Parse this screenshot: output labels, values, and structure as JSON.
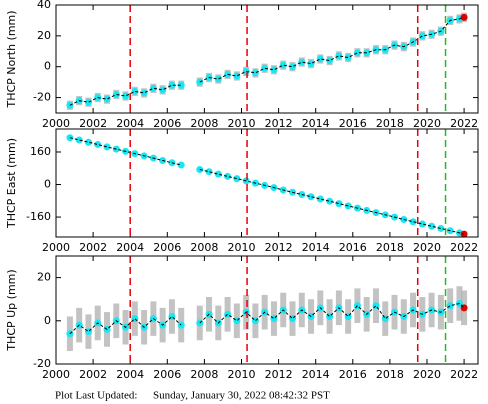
{
  "chart_data": [
    {
      "type": "scatter",
      "ylabel": "THCP North (mm)",
      "color": "#19e6f0",
      "error_color": "#b4b4b4",
      "line_color": "#000000",
      "recent_from": 2021.9,
      "recent_color": "#e00000",
      "x": [
        2000.75,
        2001.25,
        2001.75,
        2002.25,
        2002.75,
        2003.25,
        2003.75,
        2004.25,
        2004.75,
        2005.25,
        2005.75,
        2006.25,
        2006.75,
        2007.25,
        2007.75,
        2008.25,
        2008.75,
        2009.25,
        2009.75,
        2010.25,
        2010.75,
        2011.25,
        2011.75,
        2012.25,
        2012.75,
        2013.25,
        2013.75,
        2014.25,
        2014.75,
        2015.25,
        2015.75,
        2016.25,
        2016.75,
        2017.25,
        2017.75,
        2018.25,
        2018.75,
        2019.25,
        2019.75,
        2020.25,
        2020.75,
        2021.25,
        2021.75,
        2022.0
      ],
      "values": [
        -25,
        -22,
        -23,
        -20,
        -21,
        -18,
        -19,
        -16,
        -17,
        -14,
        -15,
        -12,
        -12,
        null,
        -10,
        -7,
        -8,
        -5,
        -6,
        -3,
        -4,
        -1,
        -2,
        1,
        0,
        3,
        2,
        5,
        4,
        7,
        6,
        9,
        9,
        11,
        11,
        14,
        13,
        16,
        20,
        21,
        23,
        30,
        31,
        32
      ],
      "yerr": 3,
      "xlim": [
        2000,
        2022.75
      ],
      "xticks": [
        2000,
        2002,
        2004,
        2006,
        2008,
        2010,
        2012,
        2014,
        2016,
        2018,
        2020,
        2022
      ],
      "ylim": [
        -30,
        40
      ],
      "yticks": [
        -20,
        0,
        20,
        40
      ],
      "vlines": [
        {
          "x": 2004.0,
          "color": "#e8000b"
        },
        {
          "x": 2010.3,
          "color": "#e8000b"
        },
        {
          "x": 2019.5,
          "color": "#e8000b"
        },
        {
          "x": 2021.0,
          "color": "#22bb22"
        }
      ]
    },
    {
      "type": "scatter",
      "ylabel": "THCP East (mm)",
      "color": "#19e6f0",
      "error_color": "#b4b4b4",
      "line_color": "#000000",
      "recent_from": 2021.9,
      "recent_color": "#e00000",
      "x": [
        2000.75,
        2001.25,
        2001.75,
        2002.25,
        2002.75,
        2003.25,
        2003.75,
        2004.25,
        2004.75,
        2005.25,
        2005.75,
        2006.25,
        2006.75,
        2007.25,
        2007.75,
        2008.25,
        2008.75,
        2009.25,
        2009.75,
        2010.25,
        2010.75,
        2011.25,
        2011.75,
        2012.25,
        2012.75,
        2013.25,
        2013.75,
        2014.25,
        2014.75,
        2015.25,
        2015.75,
        2016.25,
        2016.75,
        2017.25,
        2017.75,
        2018.25,
        2018.75,
        2019.25,
        2019.75,
        2020.25,
        2020.75,
        2021.25,
        2021.75,
        2022.0
      ],
      "values": [
        230,
        219,
        208,
        197,
        185,
        174,
        163,
        152,
        141,
        130,
        118,
        107,
        96,
        null,
        74,
        63,
        51,
        40,
        29,
        18,
        7,
        -4,
        -15,
        -27,
        -38,
        -49,
        -60,
        -71,
        -82,
        -94,
        -105,
        -116,
        -127,
        -138,
        -149,
        -160,
        -172,
        -183,
        -194,
        -205,
        -216,
        -227,
        -238,
        -244
      ],
      "yerr": 2,
      "xlim": [
        2000,
        2022.75
      ],
      "xticks": [
        2000,
        2002,
        2004,
        2006,
        2008,
        2010,
        2012,
        2014,
        2016,
        2018,
        2020,
        2022
      ],
      "ylim": [
        -258,
        273
      ],
      "yticks": [
        -160,
        0,
        160
      ],
      "vlines": [
        {
          "x": 2004.0,
          "color": "#e8000b"
        },
        {
          "x": 2010.3,
          "color": "#e8000b"
        },
        {
          "x": 2019.5,
          "color": "#e8000b"
        },
        {
          "x": 2021.0,
          "color": "#22bb22"
        }
      ]
    },
    {
      "type": "scatter",
      "ylabel": "THCP Up (mm)",
      "color": "#19e6f0",
      "error_color": "#b4b4b4",
      "line_color": "#000000",
      "recent_from": 2021.9,
      "recent_color": "#e00000",
      "x": [
        2000.75,
        2001.25,
        2001.75,
        2002.25,
        2002.75,
        2003.25,
        2003.75,
        2004.25,
        2004.75,
        2005.25,
        2005.75,
        2006.25,
        2006.75,
        2007.25,
        2007.75,
        2008.25,
        2008.75,
        2009.25,
        2009.75,
        2010.25,
        2010.75,
        2011.25,
        2011.75,
        2012.25,
        2012.75,
        2013.25,
        2013.75,
        2014.25,
        2014.75,
        2015.25,
        2015.75,
        2016.25,
        2016.75,
        2017.25,
        2017.75,
        2018.25,
        2018.75,
        2019.25,
        2019.75,
        2020.25,
        2020.75,
        2021.25,
        2021.75,
        2022.0
      ],
      "values": [
        -6,
        -2,
        -5,
        -1,
        -4,
        0,
        -3,
        1,
        -3,
        1,
        -2,
        2,
        -2,
        null,
        -1,
        3,
        -1,
        3,
        0,
        4,
        0,
        4,
        1,
        5,
        1,
        5,
        2,
        6,
        2,
        6,
        2,
        7,
        3,
        7,
        1,
        4,
        2,
        5,
        3,
        5,
        4,
        7,
        8,
        6
      ],
      "yerr": 8,
      "xlim": [
        2000,
        2022.75
      ],
      "xticks": [
        2000,
        2002,
        2004,
        2006,
        2008,
        2010,
        2012,
        2014,
        2016,
        2018,
        2020,
        2022
      ],
      "ylim": [
        -20,
        30
      ],
      "yticks": [
        -20,
        0,
        20
      ],
      "vlines": [
        {
          "x": 2004.0,
          "color": "#e8000b"
        },
        {
          "x": 2010.3,
          "color": "#e8000b"
        },
        {
          "x": 2019.5,
          "color": "#e8000b"
        },
        {
          "x": 2021.0,
          "color": "#22bb22"
        }
      ]
    }
  ],
  "footer": {
    "label": "Plot Last Updated:",
    "value": "Sunday, January 30, 2022 08:42:32 PST"
  }
}
